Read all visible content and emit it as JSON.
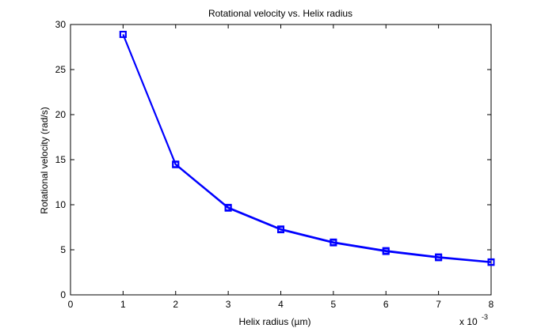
{
  "chart_data": {
    "type": "line",
    "title": "Rotational velocity vs. Helix radius",
    "xlabel": "Helix radius (µm)",
    "ylabel": "Rotational velocity (rad/s)",
    "x_multiplier_label": "x 10",
    "x_multiplier_exponent": "-3",
    "xlim": [
      0,
      8
    ],
    "ylim": [
      0,
      30
    ],
    "xticks": [
      0,
      1,
      2,
      3,
      4,
      5,
      6,
      7,
      8
    ],
    "yticks": [
      0,
      5,
      10,
      15,
      20,
      25,
      30
    ],
    "grid": false,
    "series": [
      {
        "color": "#0000ff",
        "marker": "square",
        "x": [
          1,
          2,
          3,
          4,
          5,
          6,
          7,
          8
        ],
        "y": [
          28.9,
          14.45,
          9.63,
          7.23,
          5.78,
          4.82,
          4.13,
          3.61
        ]
      },
      {
        "color": "#0000ff",
        "marker": "square",
        "x": [
          1,
          2,
          3,
          4,
          5,
          6,
          7,
          8
        ],
        "y": [
          28.9,
          14.5,
          9.7,
          7.3,
          5.85,
          4.9,
          4.2,
          3.65
        ]
      }
    ]
  }
}
